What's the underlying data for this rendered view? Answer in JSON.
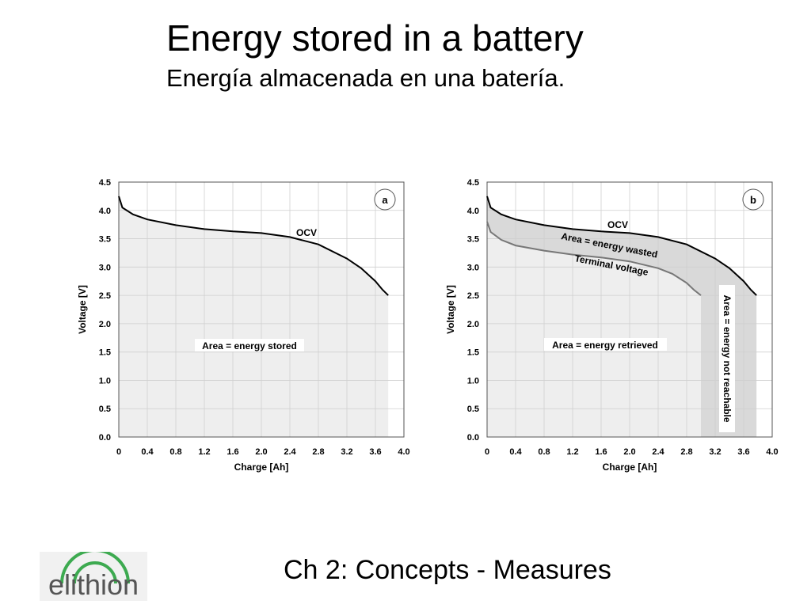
{
  "slide": {
    "title": "Energy stored in a battery",
    "subtitle": "Energía almacenada en una batería.",
    "footer": "Ch 2: Concepts - Measures",
    "logo_text": "elithion",
    "colors": {
      "logo_green": "#3daa50",
      "logo_text": "#555555",
      "fill_light": "#eeeeee",
      "fill_mid": "#d9d9d9",
      "terminal_line": "#777777"
    }
  },
  "chart_data": [
    {
      "type": "line",
      "panel_label": "a",
      "xlabel": "Charge [Ah]",
      "ylabel": "Voltage [V]",
      "xlim": [
        0,
        4.0
      ],
      "ylim": [
        0,
        4.5
      ],
      "x_ticks": [
        "0",
        "0.4",
        "0.8",
        "1.2",
        "1.6",
        "2.0",
        "2.4",
        "2.8",
        "3.2",
        "3.6",
        "4.0"
      ],
      "y_ticks": [
        "0.0",
        "0.5",
        "1.0",
        "1.5",
        "2.0",
        "2.5",
        "3.0",
        "3.5",
        "4.0",
        "4.5"
      ],
      "grid": true,
      "series": [
        {
          "name": "OCV",
          "x": [
            0,
            0.05,
            0.2,
            0.4,
            0.8,
            1.2,
            1.6,
            2.0,
            2.4,
            2.8,
            3.2,
            3.4,
            3.6,
            3.7,
            3.78
          ],
          "y": [
            4.25,
            4.05,
            3.93,
            3.84,
            3.74,
            3.67,
            3.63,
            3.6,
            3.53,
            3.4,
            3.15,
            2.98,
            2.75,
            2.6,
            2.5
          ]
        }
      ],
      "areas": [
        {
          "label": "Area = energy stored",
          "under": "OCV",
          "x_end": 3.78
        }
      ]
    },
    {
      "type": "line",
      "panel_label": "b",
      "xlabel": "Charge [Ah]",
      "ylabel": "Voltage [V]",
      "xlim": [
        0,
        4.0
      ],
      "ylim": [
        0,
        4.5
      ],
      "x_ticks": [
        "0",
        "0.4",
        "0.8",
        "1.2",
        "1.6",
        "2.0",
        "2.4",
        "2.8",
        "3.2",
        "3.6",
        "4.0"
      ],
      "y_ticks": [
        "0.0",
        "0.5",
        "1.0",
        "1.5",
        "2.0",
        "2.5",
        "3.0",
        "3.5",
        "4.0",
        "4.5"
      ],
      "grid": true,
      "series": [
        {
          "name": "OCV",
          "x": [
            0,
            0.05,
            0.2,
            0.4,
            0.8,
            1.2,
            1.6,
            2.0,
            2.4,
            2.8,
            3.2,
            3.4,
            3.6,
            3.7,
            3.78
          ],
          "y": [
            4.25,
            4.05,
            3.93,
            3.84,
            3.74,
            3.67,
            3.63,
            3.6,
            3.53,
            3.4,
            3.15,
            2.98,
            2.75,
            2.6,
            2.5
          ]
        },
        {
          "name": "Terminal voltage",
          "x": [
            0,
            0.05,
            0.2,
            0.4,
            0.8,
            1.2,
            1.6,
            2.0,
            2.4,
            2.6,
            2.8,
            2.9,
            3.0
          ],
          "y": [
            3.8,
            3.62,
            3.48,
            3.38,
            3.29,
            3.22,
            3.17,
            3.1,
            2.98,
            2.88,
            2.72,
            2.6,
            2.5
          ]
        }
      ],
      "areas": [
        {
          "label": "Area = energy retrieved",
          "under": "Terminal voltage",
          "x_end": 3.0
        },
        {
          "label": "Area = energy wasted",
          "between": [
            "OCV",
            "Terminal voltage"
          ],
          "x_end": 3.0
        },
        {
          "label": "Area = energy not reachable",
          "x_start": 3.0,
          "x_end": 3.78
        }
      ]
    }
  ]
}
